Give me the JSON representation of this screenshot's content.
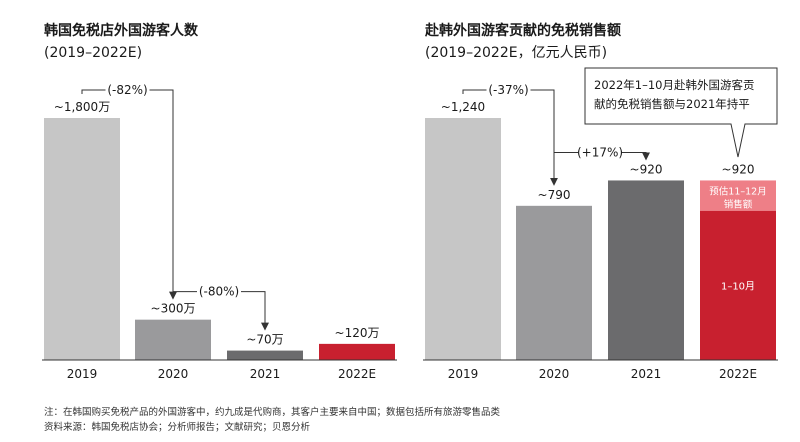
{
  "colors": {
    "bar_2019": "#c6c6c6",
    "bar_2020": "#9a9a9c",
    "bar_2021": "#6b6b6d",
    "bar_2022e": "#c8202f",
    "bar_2022e_estimate": "#ee7f87",
    "axis": "#333333",
    "arrow": "#333333"
  },
  "footnote": {
    "note": "注：在韩国购买免税产品的外国游客中，约九成是代购商，其客户主要来自中国；数据包括所有旅游零售品类",
    "source": "资料来源：韩国免税店协会；分析师报告；文献研究；贝恩分析"
  },
  "chart_data": [
    {
      "type": "bar",
      "title": "韩国免税店外国游客人数",
      "subtitle": "(2019–2022E)",
      "categories": [
        "2019",
        "2020",
        "2021",
        "2022E"
      ],
      "values": [
        1800,
        300,
        70,
        120
      ],
      "data_labels": [
        "~1,800万",
        "~300万",
        "~70万",
        "~120万"
      ],
      "bar_colors": [
        "#c6c6c6",
        "#9a9a9c",
        "#6b6b6d",
        "#c8202f"
      ],
      "ylim": [
        0,
        1800
      ],
      "grid": false,
      "annotations": [
        {
          "text": "(-82%)",
          "from": "2019",
          "to": "2020"
        },
        {
          "text": "(-80%)",
          "from": "2020",
          "to": "2021"
        }
      ]
    },
    {
      "type": "bar",
      "title": "赴韩外国游客贡献的免税销售额",
      "subtitle": "(2019–2022E，亿元人民币)",
      "categories": [
        "2019",
        "2020",
        "2021",
        "2022E"
      ],
      "values": [
        1240,
        790,
        920,
        920
      ],
      "data_labels": [
        "~1,240",
        "~790",
        "~920",
        "~920"
      ],
      "bar_colors": [
        "#c6c6c6",
        "#9a9a9c",
        "#6b6b6d",
        "#c8202f"
      ],
      "stacked_2022e": [
        {
          "name": "1–10月",
          "value": 765
        },
        {
          "name": "预估11–12月销售额",
          "value": 155
        }
      ],
      "segment_labels": [
        "1–10月",
        "预估11–12月",
        "销售额"
      ],
      "ylim": [
        0,
        1240
      ],
      "grid": false,
      "annotations": [
        {
          "text": "(-37%)",
          "from": "2019",
          "to": "2020"
        },
        {
          "text": "(+17%)",
          "from": "2020",
          "to": "2021"
        }
      ],
      "callout": [
        "2022年1–10月赴韩外国游客贡",
        "献的免税销售额与2021年持平"
      ]
    }
  ]
}
